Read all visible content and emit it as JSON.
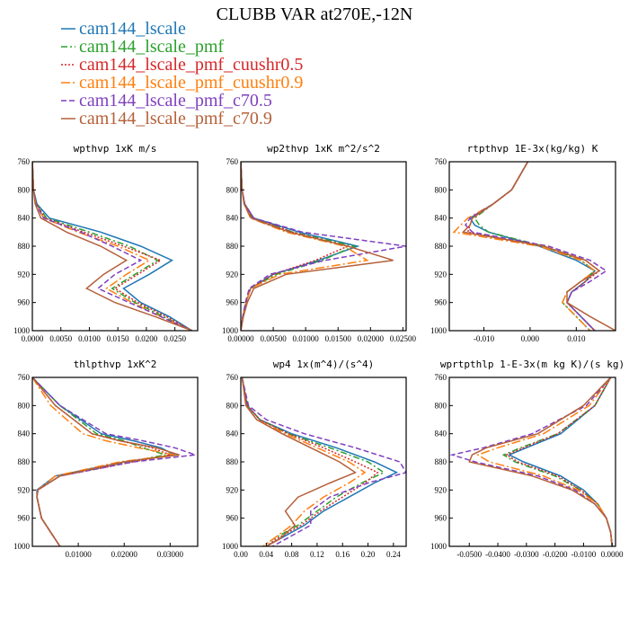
{
  "figure_title": "CLUBB VAR at270E,-12N",
  "legend": [
    {
      "label": "cam144_lscale",
      "color": "#1f77b4",
      "dash": "solid"
    },
    {
      "label": "cam144_lscale_pmf",
      "color": "#2ca02c",
      "dash": "dashdot"
    },
    {
      "label": "cam144_lscale_pmf_cuushr0.5",
      "color": "#d62728",
      "dash": "dotted"
    },
    {
      "label": "cam144_lscale_pmf_cuushr0.9",
      "color": "#ff7f0e",
      "dash": "dashdotlong"
    },
    {
      "label": "cam144_lscale_pmf_c70.5",
      "color": "#7f3fbf",
      "dash": "dashed"
    },
    {
      "label": "cam144_lscale_pmf_c70.9",
      "color": "#b5603a",
      "dash": "solid"
    }
  ],
  "chart_data": [
    {
      "type": "line",
      "title": "wpthvp  1xK m/s",
      "xlim": [
        0,
        0.029
      ],
      "xticks": [
        "0.0000",
        "0.0050",
        "0.0100",
        "0.0150",
        "0.0200",
        "0.0250"
      ],
      "xtick_values": [
        0,
        0.005,
        0.01,
        0.015,
        0.02,
        0.025
      ],
      "ylim": [
        760,
        1000
      ],
      "yticks": [
        "760",
        "800",
        "840",
        "880",
        "920",
        "960",
        "1000"
      ],
      "ytick_values": [
        760,
        800,
        840,
        880,
        920,
        960,
        1000
      ],
      "y": [
        760,
        800,
        820,
        840,
        860,
        880,
        900,
        920,
        940,
        960,
        980,
        1000
      ],
      "series": [
        {
          "name": "cam144_lscale",
          "values": [
            0,
            0.0002,
            0.0008,
            0.003,
            0.012,
            0.019,
            0.0245,
            0.0205,
            0.016,
            0.019,
            0.024,
            0.028
          ]
        },
        {
          "name": "cam144_lscale_pmf",
          "values": [
            0,
            0.0002,
            0.0007,
            0.0025,
            0.01,
            0.017,
            0.022,
            0.018,
            0.014,
            0.018,
            0.023,
            0.028
          ]
        },
        {
          "name": "cam144_lscale_pmf_cuushr0.5",
          "values": [
            0,
            0.0002,
            0.0007,
            0.0022,
            0.009,
            0.016,
            0.0225,
            0.0185,
            0.0145,
            0.0185,
            0.0235,
            0.028
          ]
        },
        {
          "name": "cam144_lscale_pmf_cuushr0.9",
          "values": [
            0,
            0.0002,
            0.0006,
            0.002,
            0.008,
            0.015,
            0.0205,
            0.0165,
            0.013,
            0.0175,
            0.0225,
            0.028
          ]
        },
        {
          "name": "cam144_lscale_pmf_c70.5",
          "values": [
            0,
            0.0002,
            0.0006,
            0.002,
            0.0085,
            0.014,
            0.019,
            0.0145,
            0.0115,
            0.017,
            0.0225,
            0.028
          ]
        },
        {
          "name": "cam144_lscale_pmf_c70.9",
          "values": [
            0,
            0.0002,
            0.0005,
            0.0015,
            0.006,
            0.012,
            0.0165,
            0.0125,
            0.0095,
            0.0145,
            0.0215,
            0.028
          ]
        }
      ]
    },
    {
      "type": "line",
      "title": "wp2thvp  1xK m^2/s^2",
      "xlim": [
        0,
        0.0255
      ],
      "xticks": [
        "0.00000",
        "0.00500",
        "0.01000",
        "0.01500",
        "0.02000",
        "0.02500"
      ],
      "xtick_values": [
        0,
        0.005,
        0.01,
        0.015,
        0.02,
        0.025
      ],
      "ylim": [
        760,
        1000
      ],
      "yticks": [
        "760",
        "800",
        "840",
        "880",
        "920",
        "960",
        "1000"
      ],
      "ytick_values": [
        760,
        800,
        840,
        880,
        920,
        960,
        1000
      ],
      "y": [
        760,
        800,
        820,
        840,
        860,
        880,
        900,
        920,
        940,
        960,
        980,
        1000
      ],
      "series": [
        {
          "name": "cam144_lscale",
          "values": [
            0,
            0.0002,
            0.0006,
            0.002,
            0.009,
            0.018,
            0.012,
            0.005,
            0.0015,
            0.0008,
            0.0003,
            0
          ]
        },
        {
          "name": "cam144_lscale_pmf",
          "values": [
            0,
            0.0002,
            0.0006,
            0.0018,
            0.008,
            0.0175,
            0.0125,
            0.0055,
            0.0015,
            0.0008,
            0.0003,
            0
          ]
        },
        {
          "name": "cam144_lscale_pmf_cuushr0.5",
          "values": [
            0,
            0.0002,
            0.0006,
            0.0018,
            0.008,
            0.0165,
            0.0115,
            0.005,
            0.0015,
            0.0008,
            0.0003,
            0
          ]
        },
        {
          "name": "cam144_lscale_pmf_cuushr0.9",
          "values": [
            0,
            0.0002,
            0.0005,
            0.0015,
            0.007,
            0.016,
            0.0195,
            0.006,
            0.0015,
            0.0008,
            0.0003,
            0
          ]
        },
        {
          "name": "cam144_lscale_pmf_c70.5",
          "values": [
            0,
            0.0002,
            0.0006,
            0.002,
            0.0095,
            0.0255,
            0.013,
            0.0045,
            0.0013,
            0.0007,
            0.0003,
            0
          ]
        },
        {
          "name": "cam144_lscale_pmf_c70.9",
          "values": [
            0,
            0.0002,
            0.0005,
            0.0016,
            0.0075,
            0.0165,
            0.0235,
            0.007,
            0.002,
            0.001,
            0.0004,
            0
          ]
        }
      ]
    },
    {
      "type": "line",
      "title": "rtpthvp  1E-3x(kg/kg) K",
      "xlim": [
        -0.0175,
        0.0185
      ],
      "xticks": [
        "-0.010",
        "0.000",
        "0.010"
      ],
      "xtick_values": [
        -0.01,
        0,
        0.01
      ],
      "ylim": [
        760,
        1000
      ],
      "yticks": [
        "760",
        "800",
        "840",
        "880",
        "920",
        "960",
        "1000"
      ],
      "ytick_values": [
        760,
        800,
        840,
        880,
        920,
        960,
        1000
      ],
      "y": [
        760,
        800,
        820,
        840,
        850,
        860,
        880,
        900,
        915,
        930,
        945,
        960,
        980,
        1000
      ],
      "series": [
        {
          "name": "cam144_lscale",
          "values": [
            -0.0005,
            -0.004,
            -0.008,
            -0.013,
            -0.012,
            -0.009,
            0.002,
            0.01,
            0.014,
            0.012,
            0.009,
            0.008,
            0.011,
            0.014
          ]
        },
        {
          "name": "cam144_lscale_pmf",
          "values": [
            -0.0005,
            -0.004,
            -0.008,
            -0.012,
            -0.011,
            -0.009,
            0.003,
            0.011,
            0.014,
            0.011,
            0.008,
            0.007,
            0.01,
            0.013
          ]
        },
        {
          "name": "cam144_lscale_pmf_cuushr0.5",
          "values": [
            -0.0005,
            -0.004,
            -0.008,
            -0.0125,
            -0.013,
            -0.0135,
            0.003,
            0.012,
            0.015,
            0.012,
            0.009,
            0.008,
            0.011,
            0.014
          ]
        },
        {
          "name": "cam144_lscale_pmf_cuushr0.9",
          "values": [
            -0.0005,
            -0.004,
            -0.008,
            -0.0135,
            -0.015,
            -0.0165,
            0.002,
            0.011,
            0.014,
            0.011,
            0.008,
            0.007,
            0.01,
            0.013
          ]
        },
        {
          "name": "cam144_lscale_pmf_c70.5",
          "values": [
            -0.0005,
            -0.004,
            -0.008,
            -0.013,
            -0.014,
            -0.0125,
            0.004,
            0.013,
            0.0165,
            0.013,
            0.009,
            0.008,
            0.011,
            0.014
          ]
        },
        {
          "name": "cam144_lscale_pmf_c70.9",
          "values": [
            -0.0005,
            -0.004,
            -0.008,
            -0.0125,
            -0.013,
            -0.0145,
            0.003,
            0.012,
            0.015,
            0.011,
            0.008,
            0.008,
            0.013,
            0.0185
          ]
        }
      ]
    },
    {
      "type": "line",
      "title": "thlpthvp  1xK^2",
      "xlim": [
        0,
        0.036
      ],
      "xticks": [
        "0.01000",
        "0.02000",
        "0.03000"
      ],
      "xtick_values": [
        0.01,
        0.02,
        0.03
      ],
      "ylim": [
        760,
        1000
      ],
      "yticks": [
        "760",
        "800",
        "840",
        "880",
        "920",
        "960",
        "1000"
      ],
      "ytick_values": [
        760,
        800,
        840,
        880,
        920,
        960,
        1000
      ],
      "y": [
        760,
        800,
        840,
        850,
        860,
        870,
        880,
        900,
        920,
        930,
        960,
        980,
        1000
      ],
      "series": [
        {
          "name": "cam144_lscale",
          "values": [
            0,
            0.006,
            0.015,
            0.022,
            0.028,
            0.031,
            0.02,
            0.005,
            0.001,
            0.001,
            0.002,
            0.004,
            0.006
          ]
        },
        {
          "name": "cam144_lscale_pmf",
          "values": [
            0,
            0.006,
            0.014,
            0.02,
            0.024,
            0.029,
            0.021,
            0.006,
            0.0012,
            0.001,
            0.002,
            0.004,
            0.006
          ]
        },
        {
          "name": "cam144_lscale_pmf_cuushr0.5",
          "values": [
            0,
            0.005,
            0.013,
            0.019,
            0.026,
            0.03,
            0.022,
            0.006,
            0.0012,
            0.001,
            0.002,
            0.004,
            0.006
          ]
        },
        {
          "name": "cam144_lscale_pmf_cuushr0.9",
          "values": [
            0,
            0.004,
            0.011,
            0.016,
            0.023,
            0.031,
            0.019,
            0.005,
            0.0012,
            0.001,
            0.002,
            0.004,
            0.006
          ]
        },
        {
          "name": "cam144_lscale_pmf_c70.5",
          "values": [
            0,
            0.006,
            0.016,
            0.024,
            0.031,
            0.0355,
            0.022,
            0.006,
            0.0012,
            0.001,
            0.002,
            0.004,
            0.006
          ]
        },
        {
          "name": "cam144_lscale_pmf_c70.9",
          "values": [
            0,
            0.005,
            0.013,
            0.019,
            0.027,
            0.032,
            0.02,
            0.006,
            0.0012,
            0.001,
            0.002,
            0.004,
            0.006
          ]
        }
      ]
    },
    {
      "type": "line",
      "title": "wp4  1x(m^4)/(s^4)",
      "xlim": [
        0,
        0.26
      ],
      "xticks": [
        "0.00",
        "0.04",
        "0.08",
        "0.12",
        "0.16",
        "0.20",
        "0.24"
      ],
      "xtick_values": [
        0,
        0.04,
        0.08,
        0.12,
        0.16,
        0.2,
        0.24
      ],
      "ylim": [
        760,
        1000
      ],
      "yticks": [
        "760",
        "800",
        "840",
        "880",
        "920",
        "960",
        "1000"
      ],
      "ytick_values": [
        760,
        800,
        840,
        880,
        920,
        960,
        1000
      ],
      "y": [
        760,
        800,
        820,
        840,
        860,
        880,
        895,
        910,
        930,
        950,
        970,
        990,
        1000
      ],
      "series": [
        {
          "name": "cam144_lscale",
          "values": [
            0.002,
            0.01,
            0.03,
            0.08,
            0.15,
            0.21,
            0.245,
            0.21,
            0.17,
            0.13,
            0.1,
            0.06,
            0.04
          ]
        },
        {
          "name": "cam144_lscale_pmf",
          "values": [
            0.002,
            0.01,
            0.03,
            0.075,
            0.14,
            0.2,
            0.225,
            0.19,
            0.15,
            0.12,
            0.09,
            0.05,
            0.035
          ]
        },
        {
          "name": "cam144_lscale_pmf_cuushr0.5",
          "values": [
            0.002,
            0.01,
            0.03,
            0.075,
            0.13,
            0.18,
            0.215,
            0.195,
            0.16,
            0.125,
            0.095,
            0.055,
            0.04
          ]
        },
        {
          "name": "cam144_lscale_pmf_cuushr0.9",
          "values": [
            0.002,
            0.008,
            0.025,
            0.07,
            0.12,
            0.17,
            0.195,
            0.17,
            0.13,
            0.1,
            0.08,
            0.05,
            0.035
          ]
        },
        {
          "name": "cam144_lscale_pmf_c70.5",
          "values": [
            0.002,
            0.012,
            0.04,
            0.1,
            0.18,
            0.25,
            0.26,
            0.2,
            0.14,
            0.11,
            0.11,
            0.07,
            0.05
          ]
        },
        {
          "name": "cam144_lscale_pmf_c70.9",
          "values": [
            0.002,
            0.008,
            0.025,
            0.065,
            0.11,
            0.155,
            0.18,
            0.14,
            0.09,
            0.07,
            0.085,
            0.06,
            0.04
          ]
        }
      ]
    },
    {
      "type": "line",
      "title": "wprtpthlp  1-E-3x(m kg K)/(s kg)",
      "xlim": [
        -0.057,
        0.0012
      ],
      "xticks": [
        "-0.0500",
        "-0.0400",
        "-0.0300",
        "-0.0200",
        "-0.0100",
        "0.0000"
      ],
      "xtick_values": [
        -0.05,
        -0.04,
        -0.03,
        -0.02,
        -0.01,
        0
      ],
      "ylim": [
        760,
        1000
      ],
      "yticks": [
        "760",
        "800",
        "840",
        "880",
        "920",
        "960",
        "1000"
      ],
      "ytick_values": [
        760,
        800,
        840,
        880,
        920,
        960,
        1000
      ],
      "y": [
        760,
        800,
        840,
        860,
        870,
        880,
        900,
        920,
        940,
        960,
        980,
        1000
      ],
      "series": [
        {
          "name": "cam144_lscale",
          "values": [
            -0.0005,
            -0.006,
            -0.018,
            -0.03,
            -0.036,
            -0.031,
            -0.018,
            -0.01,
            -0.005,
            -0.002,
            -0.0005,
            0
          ]
        },
        {
          "name": "cam144_lscale_pmf",
          "values": [
            -0.0005,
            -0.006,
            -0.019,
            -0.032,
            -0.038,
            -0.034,
            -0.02,
            -0.011,
            -0.005,
            -0.002,
            -0.0005,
            0
          ]
        },
        {
          "name": "cam144_lscale_pmf_cuushr0.5",
          "values": [
            -0.0005,
            -0.006,
            -0.019,
            -0.031,
            -0.037,
            -0.033,
            -0.019,
            -0.011,
            -0.005,
            -0.002,
            -0.0005,
            0
          ]
        },
        {
          "name": "cam144_lscale_pmf_cuushr0.9",
          "values": [
            -0.0005,
            -0.008,
            -0.024,
            -0.04,
            -0.047,
            -0.043,
            -0.024,
            -0.012,
            -0.005,
            -0.002,
            -0.0005,
            0
          ]
        },
        {
          "name": "cam144_lscale_pmf_c70.5",
          "values": [
            -0.0005,
            -0.009,
            -0.028,
            -0.045,
            -0.056,
            -0.048,
            -0.026,
            -0.013,
            -0.006,
            -0.002,
            -0.0005,
            0
          ]
        },
        {
          "name": "cam144_lscale_pmf_c70.9",
          "values": [
            -0.0005,
            -0.01,
            -0.026,
            -0.044,
            -0.049,
            -0.05,
            -0.028,
            -0.014,
            -0.006,
            -0.002,
            -0.0005,
            0
          ]
        }
      ]
    }
  ]
}
